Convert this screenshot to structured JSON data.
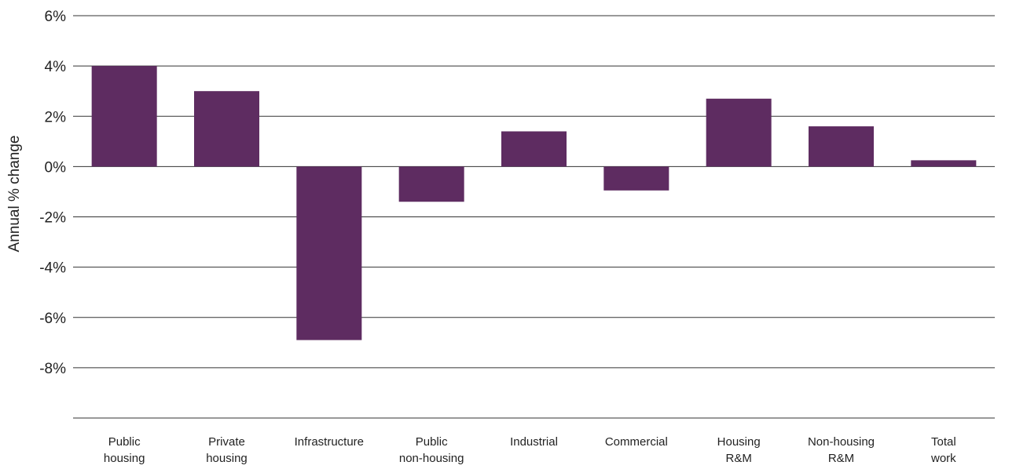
{
  "chart_data": {
    "type": "bar",
    "title": "",
    "xlabel": "",
    "ylabel": "Annual % change",
    "ylim": [
      -10,
      6
    ],
    "y_ticks": [
      6,
      4,
      2,
      0,
      -2,
      -4,
      -6,
      -8
    ],
    "y_tick_labels": [
      "6%",
      "4%",
      "2%",
      "0%",
      "-2%",
      "-4%",
      "-6%",
      "-8%"
    ],
    "grid": true,
    "bar_color": "#5e2c61",
    "categories": [
      [
        "Public",
        "housing"
      ],
      [
        "Private",
        "housing"
      ],
      [
        "Infrastructure"
      ],
      [
        "Public",
        "non-housing"
      ],
      [
        "Industrial"
      ],
      [
        "Commercial"
      ],
      [
        "Housing",
        "R&M"
      ],
      [
        "Non-housing",
        "R&M"
      ],
      [
        "Total",
        "work"
      ]
    ],
    "values": [
      4.0,
      3.0,
      -6.9,
      -1.4,
      1.4,
      -0.95,
      2.7,
      1.6,
      0.25
    ]
  }
}
